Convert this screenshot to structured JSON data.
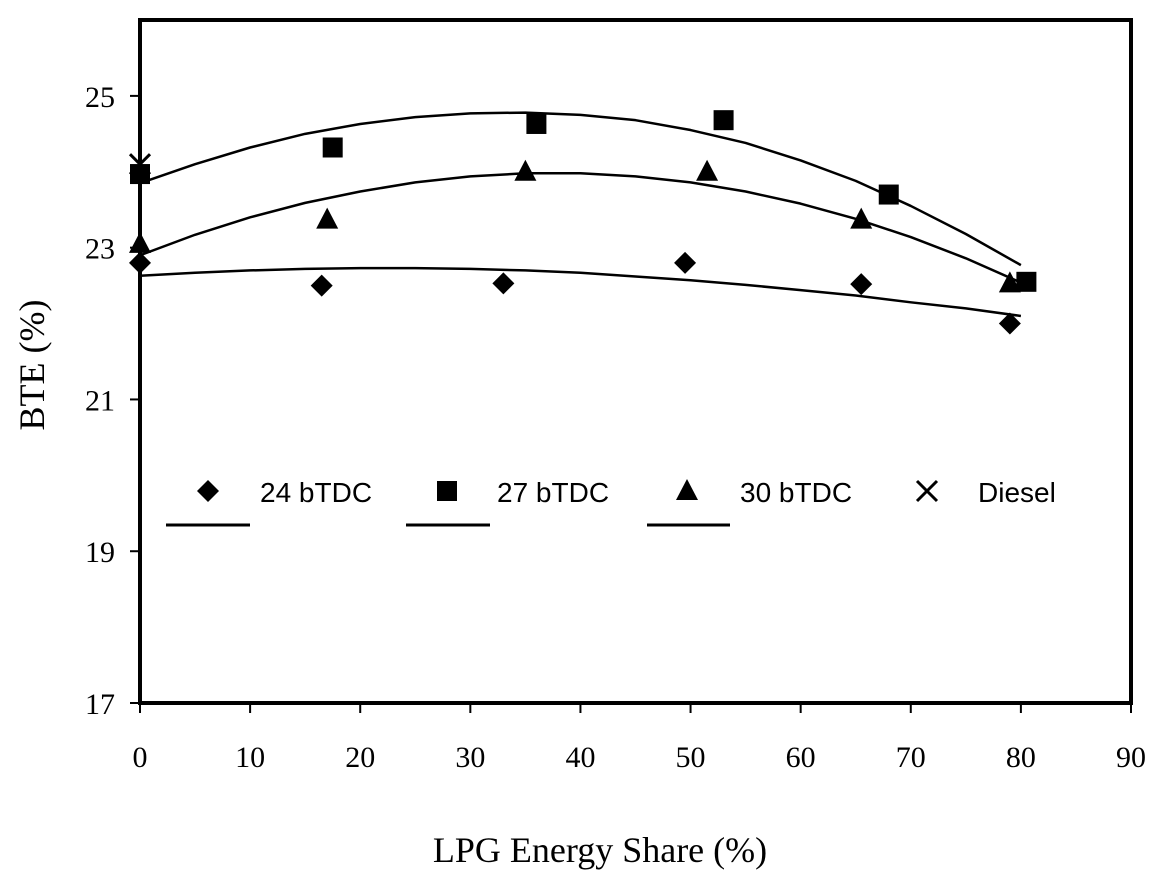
{
  "chart_data": {
    "type": "scatter",
    "xlabel": "LPG Energy Share (%)",
    "ylabel": "BTE (%)",
    "xlim": [
      0,
      90
    ],
    "ylim": [
      17,
      26
    ],
    "x_ticks": [
      "0",
      "10",
      "20",
      "30",
      "40",
      "50",
      "60",
      "70",
      "80",
      "90"
    ],
    "y_ticks": [
      "17",
      "19",
      "21",
      "23",
      "25"
    ],
    "grid": false,
    "legend_placement": "center-left",
    "series": [
      {
        "name": "24 bTDC",
        "marker": "diamond",
        "x": [
          0,
          16.5,
          33,
          49.5,
          65.5,
          79
        ],
        "y": [
          22.8,
          22.5,
          22.53,
          22.8,
          22.52,
          22.0
        ],
        "trend_x": [
          0,
          5,
          10,
          15,
          20,
          25,
          30,
          35,
          40,
          45,
          50,
          55,
          60,
          65,
          70,
          75,
          80
        ],
        "trend_y": [
          22.63,
          22.67,
          22.7,
          22.72,
          22.73,
          22.73,
          22.72,
          22.7,
          22.67,
          22.62,
          22.57,
          22.51,
          22.44,
          22.37,
          22.28,
          22.2,
          22.1
        ]
      },
      {
        "name": "27 bTDC",
        "marker": "square",
        "x": [
          0,
          17.5,
          36,
          53,
          68,
          80.5
        ],
        "y": [
          23.97,
          24.32,
          24.63,
          24.68,
          23.7,
          22.55
        ],
        "trend_x": [
          0,
          5,
          10,
          15,
          20,
          25,
          30,
          35,
          40,
          45,
          50,
          55,
          60,
          65,
          70,
          75,
          80
        ],
        "trend_y": [
          23.85,
          24.1,
          24.32,
          24.5,
          24.63,
          24.72,
          24.77,
          24.78,
          24.75,
          24.68,
          24.55,
          24.38,
          24.15,
          23.88,
          23.55,
          23.18,
          22.77
        ]
      },
      {
        "name": "30 bTDC",
        "marker": "triangle",
        "x": [
          0,
          17,
          35,
          51.5,
          65.5,
          79
        ],
        "y": [
          23.05,
          23.37,
          24.0,
          24.0,
          23.37,
          22.53
        ],
        "trend_x": [
          0,
          5,
          10,
          15,
          20,
          25,
          30,
          35,
          40,
          45,
          50,
          55,
          60,
          65,
          70,
          75,
          80
        ],
        "trend_y": [
          22.9,
          23.17,
          23.4,
          23.59,
          23.74,
          23.86,
          23.94,
          23.98,
          23.98,
          23.94,
          23.86,
          23.74,
          23.58,
          23.38,
          23.14,
          22.86,
          22.54
        ]
      },
      {
        "name": "Diesel",
        "marker": "x",
        "x": [
          0
        ],
        "y": [
          24.1
        ]
      }
    ],
    "colors": {
      "ink": "#000000",
      "background": "#ffffff"
    }
  }
}
